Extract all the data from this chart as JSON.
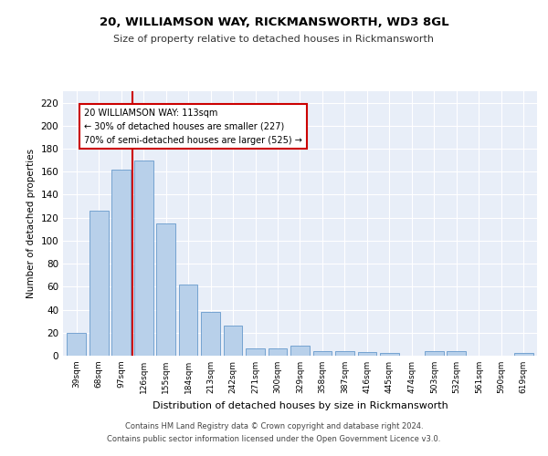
{
  "title1": "20, WILLIAMSON WAY, RICKMANSWORTH, WD3 8GL",
  "title2": "Size of property relative to detached houses in Rickmansworth",
  "xlabel": "Distribution of detached houses by size in Rickmansworth",
  "ylabel": "Number of detached properties",
  "categories": [
    "39sqm",
    "68sqm",
    "97sqm",
    "126sqm",
    "155sqm",
    "184sqm",
    "213sqm",
    "242sqm",
    "271sqm",
    "300sqm",
    "329sqm",
    "358sqm",
    "387sqm",
    "416sqm",
    "445sqm",
    "474sqm",
    "503sqm",
    "532sqm",
    "561sqm",
    "590sqm",
    "619sqm"
  ],
  "values": [
    20,
    126,
    162,
    170,
    115,
    62,
    38,
    26,
    6,
    6,
    9,
    4,
    4,
    3,
    2,
    0,
    4,
    4,
    0,
    0,
    2
  ],
  "bar_color": "#b8d0ea",
  "bar_edge_color": "#6699cc",
  "vline_x_index": 2.5,
  "vline_color": "#cc0000",
  "annotation_lines": [
    "20 WILLIAMSON WAY: 113sqm",
    "← 30% of detached houses are smaller (227)",
    "70% of semi-detached houses are larger (525) →"
  ],
  "annotation_box_color": "#cc0000",
  "ylim": [
    0,
    230
  ],
  "yticks": [
    0,
    20,
    40,
    60,
    80,
    100,
    120,
    140,
    160,
    180,
    200,
    220
  ],
  "background_color": "#e8eef8",
  "grid_color": "#ffffff",
  "footer1": "Contains HM Land Registry data © Crown copyright and database right 2024.",
  "footer2": "Contains public sector information licensed under the Open Government Licence v3.0."
}
